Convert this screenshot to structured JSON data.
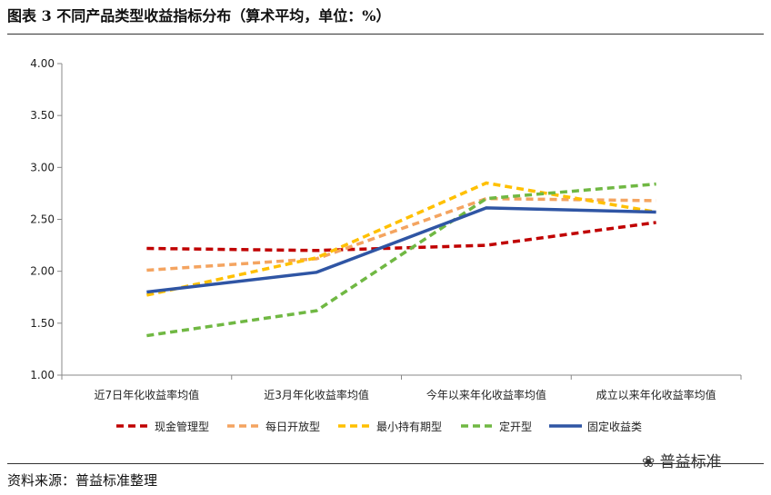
{
  "title": "图表 3  不同产品类型收益指标分布（算术平均，单位：%）",
  "source": "资料来源：普益标准整理",
  "watermark": "普益标准",
  "chart_data": {
    "type": "line",
    "categories": [
      "近7日年化收益率均值",
      "近3月年化收益率均值",
      "今年以来年化收益率均值",
      "成立以来年化收益率均值"
    ],
    "ylim": [
      1.0,
      4.0
    ],
    "yticks": [
      "1.00",
      "1.50",
      "2.00",
      "2.50",
      "3.00",
      "3.50",
      "4.00"
    ],
    "grid": false,
    "legend": "bottom",
    "series": [
      {
        "name": "现金管理型",
        "color": "#C00000",
        "dash": true,
        "values": [
          2.22,
          2.2,
          2.25,
          2.47
        ]
      },
      {
        "name": "每日开放型",
        "color": "#F4A460",
        "dash": true,
        "values": [
          2.01,
          2.12,
          2.7,
          2.68
        ]
      },
      {
        "name": "最小持有期型",
        "color": "#FFC000",
        "dash": true,
        "values": [
          1.77,
          2.13,
          2.85,
          2.57
        ]
      },
      {
        "name": "定开型",
        "color": "#70B843",
        "dash": true,
        "values": [
          1.38,
          1.62,
          2.7,
          2.84
        ]
      },
      {
        "name": "固定收益类",
        "color": "#2F55A4",
        "dash": false,
        "values": [
          1.8,
          1.99,
          2.61,
          2.57
        ]
      }
    ]
  }
}
